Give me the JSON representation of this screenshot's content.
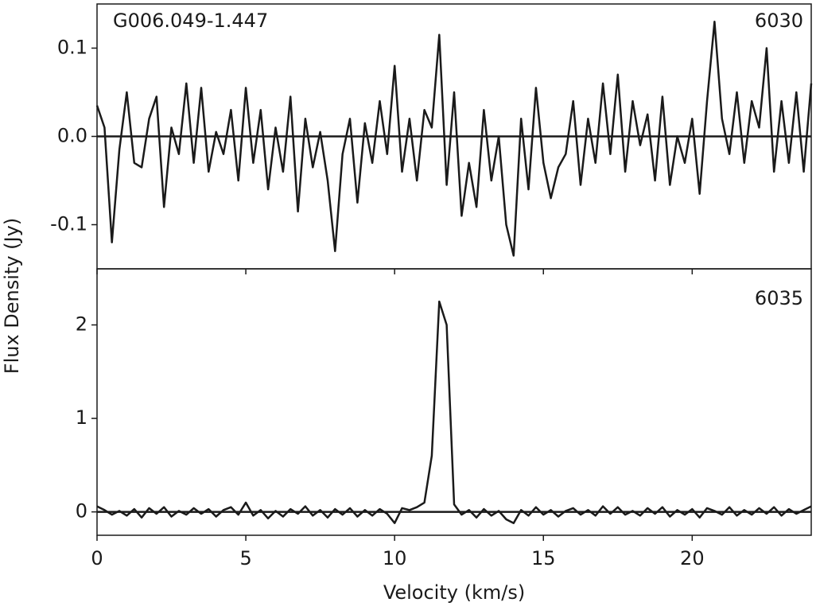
{
  "chart_data": [
    {
      "type": "line",
      "title": "G006.049-1.447",
      "label": "6030",
      "ylabel": "Flux Density (Jy)",
      "color": "#1a1a1a",
      "hline": 0,
      "xlim": [
        0,
        24
      ],
      "ylim": [
        -0.15,
        0.15
      ],
      "yticks": [
        {
          "value": -0.1,
          "label": "-0.1"
        },
        {
          "value": 0,
          "label": "0.0"
        },
        0.1
      ],
      "x": [
        0,
        0.25,
        0.5,
        0.75,
        1,
        1.25,
        1.5,
        1.75,
        2,
        2.25,
        2.5,
        2.75,
        3,
        3.25,
        3.5,
        3.75,
        4,
        4.25,
        4.5,
        4.75,
        5,
        5.25,
        5.5,
        5.75,
        6,
        6.25,
        6.5,
        6.75,
        7,
        7.25,
        7.5,
        7.75,
        8,
        8.25,
        8.5,
        8.75,
        9,
        9.25,
        9.5,
        9.75,
        10,
        10.25,
        10.5,
        10.75,
        11,
        11.25,
        11.5,
        11.75,
        12,
        12.25,
        12.5,
        12.75,
        13,
        13.25,
        13.5,
        13.75,
        14,
        14.25,
        14.5,
        14.75,
        15,
        15.25,
        15.5,
        15.75,
        16,
        16.25,
        16.5,
        16.75,
        17,
        17.25,
        17.5,
        17.75,
        18,
        18.25,
        18.5,
        18.75,
        19,
        19.25,
        19.5,
        19.75,
        20,
        20.25,
        20.5,
        20.75,
        21,
        21.25,
        21.5,
        21.75,
        22,
        22.25,
        22.5,
        22.75,
        23,
        23.25,
        23.5,
        23.75,
        24
      ],
      "values": [
        0.035,
        0.01,
        -0.12,
        -0.015,
        0.05,
        -0.03,
        -0.035,
        0.02,
        0.045,
        -0.08,
        0.01,
        -0.02,
        0.06,
        -0.03,
        0.055,
        -0.04,
        0.005,
        -0.02,
        0.03,
        -0.05,
        0.055,
        -0.03,
        0.03,
        -0.06,
        0.01,
        -0.04,
        0.045,
        -0.085,
        0.02,
        -0.035,
        0.005,
        -0.05,
        -0.13,
        -0.02,
        0.02,
        -0.075,
        0.015,
        -0.03,
        0.04,
        -0.02,
        0.08,
        -0.04,
        0.02,
        -0.05,
        0.03,
        0.01,
        0.115,
        -0.055,
        0.05,
        -0.09,
        -0.03,
        -0.08,
        0.03,
        -0.05,
        0,
        -0.1,
        -0.135,
        0.02,
        -0.06,
        0.055,
        -0.03,
        -0.07,
        -0.035,
        -0.02,
        0.04,
        -0.055,
        0.02,
        -0.03,
        0.06,
        -0.02,
        0.07,
        -0.04,
        0.04,
        -0.01,
        0.025,
        -0.05,
        0.045,
        -0.055,
        0,
        -0.03,
        0.02,
        -0.065,
        0.04,
        0.13,
        0.02,
        -0.02,
        0.05,
        -0.03,
        0.04,
        0.01,
        0.1,
        -0.04,
        0.04,
        -0.03,
        0.05,
        -0.04,
        0.06
      ]
    },
    {
      "type": "line",
      "label": "6035",
      "xlabel": "Velocity (km/s)",
      "color": "#1a1a1a",
      "hline": 0,
      "xlim": [
        0,
        24
      ],
      "xticks": [
        0,
        5,
        10,
        15,
        20
      ],
      "ylim": [
        -0.25,
        2.6
      ],
      "yticks": [
        0,
        1,
        2
      ],
      "x": [
        0,
        0.25,
        0.5,
        0.75,
        1,
        1.25,
        1.5,
        1.75,
        2,
        2.25,
        2.5,
        2.75,
        3,
        3.25,
        3.5,
        3.75,
        4,
        4.25,
        4.5,
        4.75,
        5,
        5.25,
        5.5,
        5.75,
        6,
        6.25,
        6.5,
        6.75,
        7,
        7.25,
        7.5,
        7.75,
        8,
        8.25,
        8.5,
        8.75,
        9,
        9.25,
        9.5,
        9.75,
        10,
        10.25,
        10.5,
        10.75,
        11,
        11.25,
        11.5,
        11.75,
        12,
        12.25,
        12.5,
        12.75,
        13,
        13.25,
        13.5,
        13.75,
        14,
        14.25,
        14.5,
        14.75,
        15,
        15.25,
        15.5,
        15.75,
        16,
        16.25,
        16.5,
        16.75,
        17,
        17.25,
        17.5,
        17.75,
        18,
        18.25,
        18.5,
        18.75,
        19,
        19.25,
        19.5,
        19.75,
        20,
        20.25,
        20.5,
        20.75,
        21,
        21.25,
        21.5,
        21.75,
        22,
        22.25,
        22.5,
        22.75,
        23,
        23.25,
        23.5,
        23.75,
        24
      ],
      "values": [
        0.06,
        0.02,
        -0.03,
        0.01,
        -0.04,
        0.03,
        -0.06,
        0.04,
        -0.02,
        0.05,
        -0.05,
        0.01,
        -0.03,
        0.04,
        -0.02,
        0.03,
        -0.05,
        0.02,
        0.05,
        -0.03,
        0.1,
        -0.04,
        0.02,
        -0.07,
        0.01,
        -0.05,
        0.03,
        -0.02,
        0.06,
        -0.04,
        0.02,
        -0.06,
        0.03,
        -0.03,
        0.04,
        -0.05,
        0.02,
        -0.04,
        0.03,
        -0.02,
        -0.12,
        0.04,
        0.02,
        0.05,
        0.1,
        0.6,
        2.25,
        2.0,
        0.08,
        -0.03,
        0.02,
        -0.06,
        0.03,
        -0.04,
        0.01,
        -0.08,
        -0.12,
        0.02,
        -0.04,
        0.05,
        -0.03,
        0.02,
        -0.05,
        0.01,
        0.04,
        -0.03,
        0.02,
        -0.04,
        0.06,
        -0.02,
        0.05,
        -0.03,
        0.01,
        -0.04,
        0.04,
        -0.02,
        0.05,
        -0.05,
        0.02,
        -0.03,
        0.03,
        -0.06,
        0.04,
        0.01,
        -0.03,
        0.05,
        -0.04,
        0.02,
        -0.03,
        0.04,
        -0.02,
        0.05,
        -0.04,
        0.03,
        -0.02,
        0.02,
        0.06
      ]
    }
  ]
}
